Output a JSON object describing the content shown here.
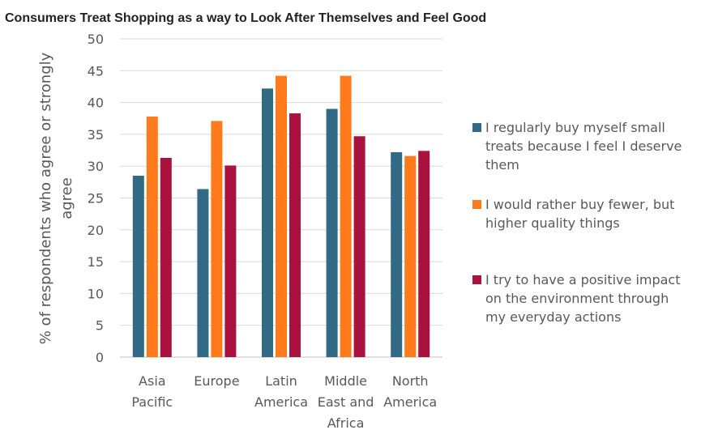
{
  "chart_data": {
    "type": "bar",
    "title": "Consumers Treat Shopping as a way to Look After Themselves and Feel Good",
    "ylabel_lines": [
      "% of respondents who agree or strongly",
      "agree"
    ],
    "xlabel": "",
    "ylim": [
      0,
      50
    ],
    "yticks": [
      0,
      5,
      10,
      15,
      20,
      25,
      30,
      35,
      40,
      45,
      50
    ],
    "grid": true,
    "legend_position": "right",
    "categories": [
      [
        "Asia",
        "Pacific"
      ],
      [
        "Europe"
      ],
      [
        "Latin",
        "America"
      ],
      [
        "Middle",
        "East and",
        "Africa"
      ],
      [
        "North",
        "America"
      ]
    ],
    "series": [
      {
        "name_lines": [
          "I regularly buy myself small",
          "treats because I feel I deserve",
          "them"
        ],
        "color": "#326a85",
        "values": [
          28.5,
          26.4,
          42.2,
          39.0,
          32.2
        ]
      },
      {
        "name_lines": [
          "I would rather buy fewer, but",
          "higher quality things"
        ],
        "color": "#ff7a1a",
        "values": [
          37.8,
          37.1,
          44.2,
          44.2,
          31.6
        ]
      },
      {
        "name_lines": [
          "I try to have a positive impact",
          "on the environment through",
          "my everyday actions"
        ],
        "color": "#a8123d",
        "values": [
          31.3,
          30.1,
          38.3,
          34.7,
          32.4
        ]
      }
    ]
  }
}
